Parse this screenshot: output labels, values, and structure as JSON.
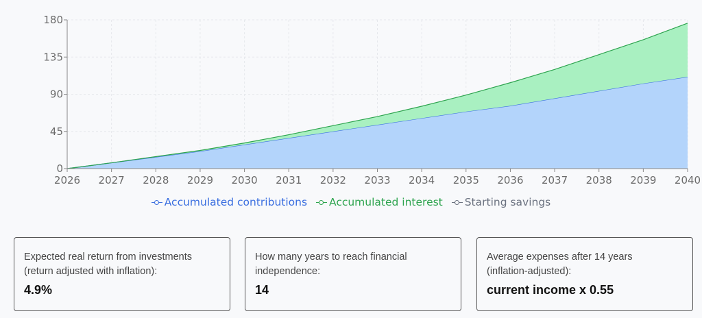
{
  "chart_data": {
    "type": "area",
    "stacked": true,
    "x": [
      2026,
      2027,
      2028,
      2029,
      2030,
      2031,
      2032,
      2033,
      2034,
      2035,
      2036,
      2037,
      2038,
      2039,
      2040
    ],
    "series": [
      {
        "name": "Accumulated contributions",
        "color": "#3b6fe0",
        "fill": "#b3d4fb",
        "values": [
          0,
          7,
          14,
          21,
          29,
          37,
          45,
          53,
          61,
          69,
          76,
          85,
          94,
          103,
          111
        ]
      },
      {
        "name": "Accumulated interest",
        "color": "#2ea44f",
        "fill": "#a9f0c1",
        "values": [
          0,
          0,
          0.5,
          1,
          2,
          4,
          7,
          10,
          14.5,
          20,
          28,
          35,
          44,
          53,
          65
        ]
      },
      {
        "name": "Starting savings",
        "color": "#6b7280",
        "fill": "#d1d5db",
        "values": [
          0,
          0,
          0,
          0,
          0,
          0,
          0,
          0,
          0,
          0,
          0,
          0,
          0,
          0,
          0
        ]
      }
    ],
    "ylim": [
      0,
      180
    ],
    "yticks": [
      0,
      45,
      90,
      135,
      180
    ],
    "xlim": [
      2026,
      2040
    ],
    "grid": true,
    "legend": "bottom"
  },
  "cards": [
    {
      "label_line1": "Expected real return from investments",
      "label_line2": "(return adjusted with inflation):",
      "value": "4.9%"
    },
    {
      "label_line1": "How many years to reach financial",
      "label_line2": "independence:",
      "value": "14"
    },
    {
      "label_line1": "Average expenses after 14 years",
      "label_line2": "(inflation-adjusted):",
      "value": "current income x 0.55"
    }
  ]
}
